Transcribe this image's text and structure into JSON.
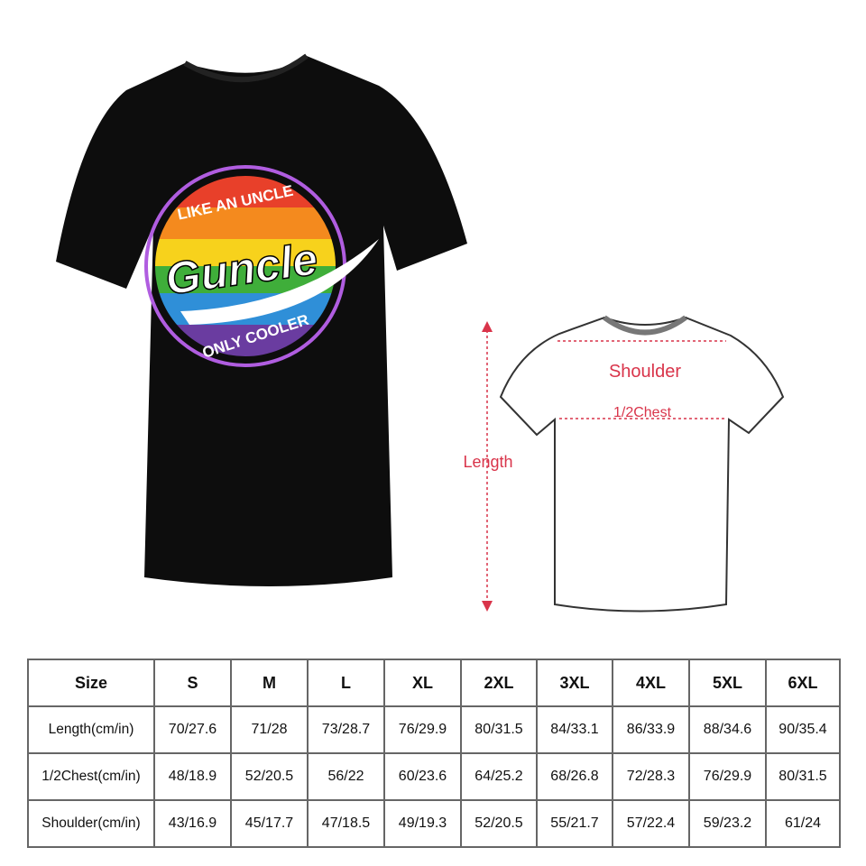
{
  "shirt_graphic": {
    "top_text": "LIKE AN UNCLE",
    "main_text": "Guncle",
    "bottom_text": "ONLY COOLER",
    "shirt_color": "#0d0d0d",
    "stripe_colors": [
      "#e8402a",
      "#f48a1e",
      "#f7d21c",
      "#3fae3a",
      "#2f8fd8",
      "#6a3ca0"
    ]
  },
  "diagram": {
    "shoulder_label": "Shoulder",
    "chest_label": "1/2Chest",
    "length_label": "Length",
    "accent_color": "#d9344a"
  },
  "size_table": {
    "headers": [
      "Size",
      "S",
      "M",
      "L",
      "XL",
      "2XL",
      "3XL",
      "4XL",
      "5XL",
      "6XL"
    ],
    "rows": [
      {
        "label": "Length(cm/in)",
        "values": [
          "70/27.6",
          "71/28",
          "73/28.7",
          "76/29.9",
          "80/31.5",
          "84/33.1",
          "86/33.9",
          "88/34.6",
          "90/35.4"
        ]
      },
      {
        "label": "1/2Chest(cm/in)",
        "values": [
          "48/18.9",
          "52/20.5",
          "56/22",
          "60/23.6",
          "64/25.2",
          "68/26.8",
          "72/28.3",
          "76/29.9",
          "80/31.5"
        ]
      },
      {
        "label": "Shoulder(cm/in)",
        "values": [
          "43/16.9",
          "45/17.7",
          "47/18.5",
          "49/19.3",
          "52/20.5",
          "55/21.7",
          "57/22.4",
          "59/23.2",
          "61/24"
        ]
      }
    ]
  }
}
